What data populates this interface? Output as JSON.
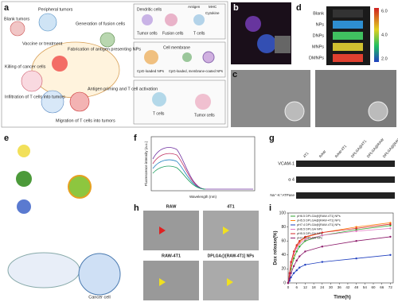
{
  "panel_labels": [
    "a",
    "b",
    "c",
    "d",
    "e",
    "f",
    "g",
    "h",
    "i"
  ],
  "a": {
    "steps": [
      "Blank tumors",
      "Peripheral tumors",
      "Vaccine or treatment",
      "Generation of fusion cells",
      "Fabrication of antigen presenting NPs",
      "Antigen priming and T cell activation",
      "Migration of T cells into tumors",
      "Infiltration of T cells into tumors",
      "Killing of cancer cells"
    ],
    "box1": [
      "Dendritic cells",
      "Antigen",
      "MHC",
      "Cytokine",
      "Tumor cells",
      "Fusion cells",
      "T cells"
    ],
    "box2": [
      "Cell membrane",
      "CpG-loaded NPs",
      "CpG-loaded, membrane-coated NPs"
    ],
    "box3": [
      "T cells",
      "Tumor cells"
    ]
  },
  "d": {
    "samples": [
      "Blank",
      "NPs",
      "DNPs",
      "MNPs",
      "DMNPs"
    ],
    "colorbar": [
      "6.0",
      "4.0",
      "2.0"
    ]
  },
  "e": {
    "labels": [
      "Cancer cell"
    ]
  },
  "f": {
    "x_label": "Wavelength (nm)",
    "y_label": "Fluorescence intensity (a.u.)"
  },
  "g": {
    "columns": [
      "4T1",
      "RAW",
      "RAW-4T1",
      "DPLGA@4T1",
      "DPLGA@RAW",
      "DPLGA@[RAW-4T1]"
    ],
    "rows": [
      "VCAM-1",
      "α 4",
      "Na⁺-K⁺ATPase"
    ]
  },
  "h": {
    "labels": [
      "RAW",
      "4T1",
      "RAW-4T1",
      "DPLGA@[RAW-4T1] NPs"
    ]
  },
  "chart_data": {
    "type": "line",
    "x_label": "Time(h)",
    "y_label": "Dox release(%)",
    "x": [
      0,
      1,
      2,
      4,
      6,
      8,
      12,
      24,
      48,
      72
    ],
    "xlim": [
      0,
      74
    ],
    "xticks": [
      0,
      6,
      12,
      18,
      24,
      30,
      36,
      42,
      48,
      54,
      60,
      66,
      72
    ],
    "ylim": [
      0,
      100
    ],
    "yticks": [
      0,
      20,
      40,
      60,
      80,
      100
    ],
    "series": [
      {
        "name": "pH6.5 DPLGA@[RAW-4T1] NPs",
        "color": "#2ca02c",
        "values": [
          0,
          8,
          20,
          35,
          45,
          52,
          60,
          68,
          76,
          82
        ]
      },
      {
        "name": "pH5.5 DPLGA@[RAW-4T1] NPs",
        "color": "#ff7f0e",
        "values": [
          0,
          10,
          25,
          40,
          52,
          58,
          65,
          72,
          80,
          86
        ]
      },
      {
        "name": "pH7.4 DPLGA@[RAW-4T1] NPs",
        "color": "#1f3fbf",
        "values": [
          0,
          3,
          8,
          14,
          18,
          22,
          26,
          30,
          35,
          40
        ]
      },
      {
        "name": "pH6.5 DPLGA NPs",
        "color": "#e377c2",
        "values": [
          0,
          12,
          28,
          42,
          50,
          56,
          62,
          68,
          74,
          78
        ]
      },
      {
        "name": "pH5.5 DPLGA NPs",
        "color": "#d62728",
        "values": [
          0,
          14,
          30,
          45,
          54,
          60,
          66,
          72,
          78,
          84
        ]
      },
      {
        "name": "pH7.4 DPLGA NPs",
        "color": "#8c1a6a",
        "values": [
          0,
          6,
          14,
          24,
          32,
          38,
          45,
          52,
          60,
          66
        ]
      }
    ],
    "legend": "upper-left"
  }
}
